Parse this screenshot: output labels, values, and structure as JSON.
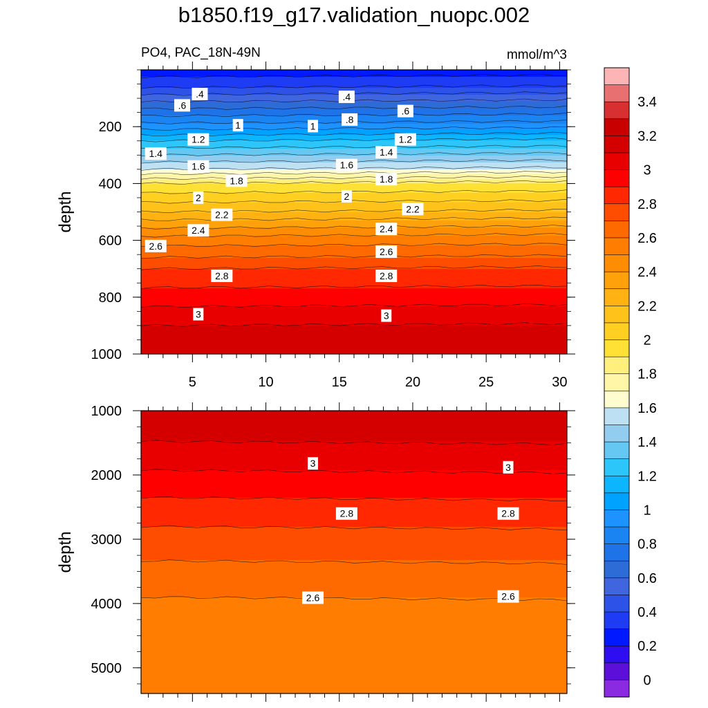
{
  "title": "b1850.f19_g17.validation_nuopc.002",
  "chart_data": {
    "type": "contour",
    "variable_label": "PO4, PAC_18N-49N",
    "units": "mmol/m^3",
    "xlabel": "",
    "x_ticks": [
      "5",
      "10",
      "15",
      "20",
      "25",
      "30"
    ],
    "x_range": [
      1.5,
      30.5
    ],
    "colorbar": {
      "labels": [
        "3.4",
        "3.2",
        "3",
        "2.8",
        "2.6",
        "2.4",
        "2.2",
        "2",
        "1.8",
        "1.6",
        "1.4",
        "1.2",
        "1",
        "0.8",
        "0.6",
        "0.4",
        "0.2",
        "0"
      ],
      "bands": [
        {
          "lo": -0.1,
          "color": "#8a2be2"
        },
        {
          "lo": 0.0,
          "color": "#5b0fd8"
        },
        {
          "lo": 0.1,
          "color": "#2e0df0"
        },
        {
          "lo": 0.2,
          "color": "#0019ff"
        },
        {
          "lo": 0.3,
          "color": "#1f3cf5"
        },
        {
          "lo": 0.4,
          "color": "#2c52e8"
        },
        {
          "lo": 0.5,
          "color": "#3f66df"
        },
        {
          "lo": 0.6,
          "color": "#2d6bd6"
        },
        {
          "lo": 0.7,
          "color": "#1e73e8"
        },
        {
          "lo": 0.8,
          "color": "#1a85f2"
        },
        {
          "lo": 0.9,
          "color": "#1c93ff"
        },
        {
          "lo": 1.0,
          "color": "#00a2ff"
        },
        {
          "lo": 1.1,
          "color": "#0cb5fd"
        },
        {
          "lo": 1.2,
          "color": "#2cc6fa"
        },
        {
          "lo": 1.3,
          "color": "#65c8f3"
        },
        {
          "lo": 1.4,
          "color": "#92cdef"
        },
        {
          "lo": 1.5,
          "color": "#bde1f3"
        },
        {
          "lo": 1.6,
          "color": "#fffdd0"
        },
        {
          "lo": 1.7,
          "color": "#fff6a8"
        },
        {
          "lo": 1.8,
          "color": "#ffef7c"
        },
        {
          "lo": 1.9,
          "color": "#ffe135"
        },
        {
          "lo": 2.0,
          "color": "#ffcf22"
        },
        {
          "lo": 2.1,
          "color": "#ffc21a"
        },
        {
          "lo": 2.2,
          "color": "#ffb211"
        },
        {
          "lo": 2.3,
          "color": "#ffa10a"
        },
        {
          "lo": 2.4,
          "color": "#ff8d04"
        },
        {
          "lo": 2.5,
          "color": "#ff7d00"
        },
        {
          "lo": 2.6,
          "color": "#ff6a00"
        },
        {
          "lo": 2.7,
          "color": "#ff4d00"
        },
        {
          "lo": 2.8,
          "color": "#ff2800"
        },
        {
          "lo": 2.9,
          "color": "#ff0000"
        },
        {
          "lo": 3.0,
          "color": "#e80000"
        },
        {
          "lo": 3.1,
          "color": "#d40000"
        },
        {
          "lo": 3.2,
          "color": "#c80000"
        },
        {
          "lo": 3.3,
          "color": "#d83030"
        },
        {
          "lo": 3.4,
          "color": "#e87070"
        },
        {
          "lo": 3.5,
          "color": "#fcb4b4"
        }
      ]
    },
    "panels": [
      {
        "name": "upper",
        "ylabel": "depth",
        "y_ticks": [
          {
            "value": 200,
            "label": "200"
          },
          {
            "value": 400,
            "label": "400"
          },
          {
            "value": 600,
            "label": "600"
          },
          {
            "value": 800,
            "label": "800"
          },
          {
            "value": 1000,
            "label": "1000"
          }
        ],
        "y_range": [
          0,
          1000
        ],
        "depth_profile": {
          "depth": [
            0,
            50,
            100,
            150,
            200,
            250,
            300,
            350,
            400,
            450,
            500,
            600,
            700,
            800,
            900,
            1000
          ],
          "value": [
            0.25,
            0.35,
            0.55,
            0.75,
            0.95,
            1.2,
            1.4,
            1.6,
            1.9,
            2.05,
            2.2,
            2.55,
            2.8,
            2.95,
            3.1,
            3.2
          ]
        },
        "contour_labels": [
          {
            "value": ".4",
            "x": 5.5,
            "y": 85
          },
          {
            "value": ".4",
            "x": 15.5,
            "y": 95
          },
          {
            "value": ".6",
            "x": 4.3,
            "y": 125
          },
          {
            "value": ".6",
            "x": 19.5,
            "y": 145
          },
          {
            "value": ".8",
            "x": 15.7,
            "y": 175
          },
          {
            "value": "1",
            "x": 8.1,
            "y": 195
          },
          {
            "value": "1",
            "x": 13.2,
            "y": 198
          },
          {
            "value": "1.2",
            "x": 5.4,
            "y": 245
          },
          {
            "value": "1.2",
            "x": 19.5,
            "y": 245
          },
          {
            "value": "1.4",
            "x": 2.5,
            "y": 295
          },
          {
            "value": "1.4",
            "x": 18.2,
            "y": 290
          },
          {
            "value": "1.6",
            "x": 5.4,
            "y": 340
          },
          {
            "value": "1.6",
            "x": 15.5,
            "y": 335
          },
          {
            "value": "1.8",
            "x": 8.0,
            "y": 390
          },
          {
            "value": "1.8",
            "x": 18.2,
            "y": 385
          },
          {
            "value": "2",
            "x": 5.4,
            "y": 450
          },
          {
            "value": "2",
            "x": 15.5,
            "y": 445
          },
          {
            "value": "2.2",
            "x": 7.0,
            "y": 510
          },
          {
            "value": "2.2",
            "x": 20.0,
            "y": 490
          },
          {
            "value": "2.4",
            "x": 5.4,
            "y": 565
          },
          {
            "value": "2.4",
            "x": 18.2,
            "y": 560
          },
          {
            "value": "2.6",
            "x": 2.5,
            "y": 620
          },
          {
            "value": "2.6",
            "x": 18.2,
            "y": 640
          },
          {
            "value": "2.8",
            "x": 7.0,
            "y": 725
          },
          {
            "value": "2.8",
            "x": 18.2,
            "y": 725
          },
          {
            "value": "3",
            "x": 5.4,
            "y": 860
          },
          {
            "value": "3",
            "x": 18.2,
            "y": 865
          }
        ]
      },
      {
        "name": "lower",
        "ylabel": "depth",
        "y_ticks": [
          {
            "value": 1000,
            "label": "1000"
          },
          {
            "value": 2000,
            "label": "2000"
          },
          {
            "value": 3000,
            "label": "3000"
          },
          {
            "value": 4000,
            "label": "4000"
          },
          {
            "value": 5000,
            "label": "5000"
          }
        ],
        "y_range": [
          1000,
          5400
        ],
        "depth_profile": {
          "depth": [
            1000,
            1250,
            1700,
            2150,
            2550,
            3050,
            3900,
            5400
          ],
          "value": [
            3.2,
            3.15,
            3.05,
            2.95,
            2.85,
            2.75,
            2.6,
            2.55
          ]
        },
        "contour_labels": [
          {
            "value": "3",
            "x": 13.2,
            "y": 1820
          },
          {
            "value": "3",
            "x": 26.5,
            "y": 1880
          },
          {
            "value": "2.8",
            "x": 15.5,
            "y": 2600
          },
          {
            "value": "2.8",
            "x": 26.5,
            "y": 2600
          },
          {
            "value": "2.6",
            "x": 13.2,
            "y": 3910
          },
          {
            "value": "2.6",
            "x": 26.5,
            "y": 3890
          }
        ]
      }
    ]
  }
}
